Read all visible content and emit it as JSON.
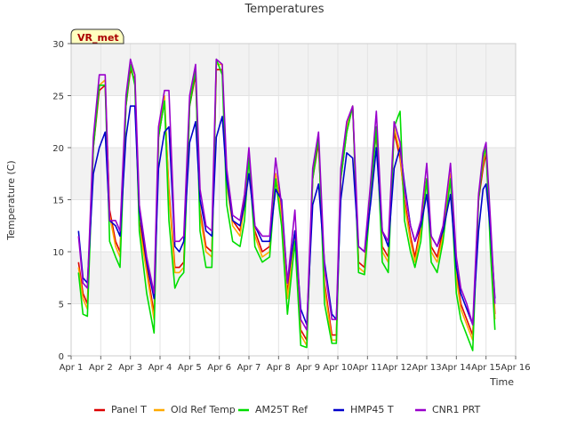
{
  "chart_data": {
    "type": "line",
    "title": "Temperatures",
    "xlabel": "Time",
    "ylabel": "Temperature (C)",
    "badge": "VR_met",
    "xlim": [
      1,
      16
    ],
    "ylim": [
      0,
      30
    ],
    "x_ticks": [
      {
        "v": 1,
        "label": "Apr 1"
      },
      {
        "v": 2,
        "label": "Apr 2"
      },
      {
        "v": 3,
        "label": "Apr 3"
      },
      {
        "v": 4,
        "label": "Apr 4"
      },
      {
        "v": 5,
        "label": "Apr 5"
      },
      {
        "v": 6,
        "label": "Apr 6"
      },
      {
        "v": 7,
        "label": "Apr 7"
      },
      {
        "v": 8,
        "label": "Apr 8"
      },
      {
        "v": 9,
        "label": "Apr 9"
      },
      {
        "v": 10,
        "label": "Apr 10"
      },
      {
        "v": 11,
        "label": "Apr 11"
      },
      {
        "v": 12,
        "label": "Apr 12"
      },
      {
        "v": 13,
        "label": "Apr 13"
      },
      {
        "v": 14,
        "label": "Apr 14"
      },
      {
        "v": 15,
        "label": "Apr 15"
      },
      {
        "v": 16,
        "label": "Apr 16"
      }
    ],
    "y_ticks": [
      0,
      5,
      10,
      15,
      20,
      25,
      30
    ],
    "grid": true,
    "legend_position": "bottom",
    "x": [
      1.25,
      1.4,
      1.55,
      1.75,
      1.95,
      2.15,
      2.3,
      2.5,
      2.65,
      2.85,
      3.0,
      3.15,
      3.3,
      3.55,
      3.8,
      3.95,
      4.15,
      4.3,
      4.5,
      4.65,
      4.8,
      5.0,
      5.2,
      5.35,
      5.55,
      5.75,
      5.9,
      6.1,
      6.25,
      6.45,
      6.7,
      6.85,
      7.0,
      7.2,
      7.45,
      7.7,
      7.9,
      8.1,
      8.3,
      8.55,
      8.75,
      8.95,
      9.15,
      9.35,
      9.55,
      9.8,
      9.95,
      10.1,
      10.3,
      10.5,
      10.7,
      10.9,
      11.1,
      11.3,
      11.5,
      11.7,
      11.9,
      12.1,
      12.25,
      12.45,
      12.6,
      12.8,
      13.0,
      13.15,
      13.35,
      13.55,
      13.8,
      14.0,
      14.15,
      14.35,
      14.55,
      14.75,
      14.9,
      15.0,
      15.15,
      15.3
    ],
    "series": [
      {
        "name": "Panel T",
        "color": "#dd0000",
        "values": [
          9.0,
          6.0,
          5.0,
          20.0,
          25.5,
          26.0,
          14.0,
          11.0,
          10.0,
          24.0,
          27.5,
          26.5,
          13.0,
          8.5,
          4.0,
          21.0,
          24.5,
          16.0,
          8.5,
          8.5,
          9.0,
          24.0,
          27.0,
          14.0,
          10.5,
          10.0,
          27.5,
          27.5,
          17.0,
          13.0,
          12.0,
          15.0,
          19.5,
          12.0,
          10.0,
          10.5,
          17.5,
          14.0,
          6.0,
          12.0,
          2.5,
          1.5,
          17.0,
          20.5,
          7.0,
          2.0,
          2.0,
          17.0,
          21.5,
          24.0,
          9.0,
          8.5,
          16.0,
          21.5,
          10.5,
          9.5,
          21.5,
          19.0,
          15.0,
          11.5,
          9.5,
          12.5,
          17.0,
          10.5,
          9.5,
          12.0,
          17.0,
          8.0,
          5.0,
          3.5,
          2.0,
          15.0,
          18.0,
          19.5,
          12.0,
          4.0
        ]
      },
      {
        "name": "Old Ref Temp",
        "color": "#ffaa00",
        "values": [
          8.5,
          5.5,
          4.5,
          20.5,
          26.0,
          26.5,
          13.5,
          10.5,
          9.5,
          24.5,
          28.0,
          27.0,
          12.5,
          8.0,
          3.5,
          21.5,
          25.0,
          15.5,
          8.0,
          8.0,
          8.5,
          24.5,
          27.5,
          13.5,
          10.0,
          9.5,
          28.0,
          28.0,
          16.5,
          12.5,
          11.5,
          14.5,
          19.5,
          11.5,
          9.5,
          10.0,
          17.5,
          13.5,
          5.5,
          11.5,
          2.0,
          1.0,
          17.5,
          21.0,
          6.5,
          1.5,
          1.5,
          17.5,
          22.0,
          24.0,
          8.5,
          8.0,
          15.5,
          22.0,
          10.0,
          9.0,
          22.0,
          19.5,
          14.5,
          11.0,
          9.0,
          12.0,
          17.0,
          10.0,
          9.0,
          11.5,
          17.5,
          7.5,
          4.5,
          3.0,
          1.5,
          15.5,
          18.5,
          20.0,
          11.5,
          3.5
        ]
      },
      {
        "name": "AM25T Ref",
        "color": "#00dd00",
        "values": [
          8.0,
          4.0,
          3.8,
          20.0,
          26.0,
          26.0,
          11.0,
          9.5,
          8.5,
          24.0,
          28.0,
          26.0,
          12.0,
          6.0,
          2.2,
          21.0,
          24.5,
          13.0,
          6.5,
          7.5,
          8.0,
          24.0,
          27.5,
          12.0,
          8.5,
          8.5,
          28.5,
          27.0,
          14.5,
          11.0,
          10.5,
          13.0,
          19.0,
          10.5,
          9.0,
          9.5,
          17.0,
          12.5,
          4.0,
          11.0,
          1.0,
          0.8,
          17.0,
          21.0,
          5.0,
          1.2,
          1.2,
          17.0,
          21.5,
          24.0,
          8.0,
          7.8,
          15.0,
          22.0,
          9.0,
          8.0,
          22.0,
          23.5,
          13.0,
          10.0,
          8.5,
          11.0,
          17.0,
          9.0,
          8.0,
          11.0,
          17.0,
          6.0,
          3.5,
          2.0,
          0.5,
          15.0,
          19.0,
          20.0,
          10.0,
          2.5
        ]
      },
      {
        "name": "HMP45 T",
        "color": "#0000cc",
        "values": [
          12.0,
          7.5,
          7.0,
          17.5,
          20.0,
          21.5,
          13.0,
          12.5,
          11.5,
          21.0,
          24.0,
          24.0,
          14.0,
          9.0,
          5.5,
          18.0,
          21.5,
          22.0,
          10.5,
          10.0,
          11.0,
          20.5,
          22.5,
          15.0,
          12.0,
          11.5,
          21.0,
          23.0,
          17.0,
          13.0,
          12.5,
          14.5,
          17.5,
          12.5,
          11.0,
          11.0,
          16.0,
          15.0,
          7.0,
          12.0,
          4.5,
          3.0,
          14.5,
          16.5,
          9.0,
          4.0,
          3.5,
          15.0,
          19.5,
          19.0,
          10.5,
          10.0,
          14.5,
          20.0,
          12.0,
          10.5,
          18.0,
          20.0,
          16.5,
          12.5,
          11.0,
          12.5,
          15.5,
          11.5,
          10.5,
          12.0,
          15.5,
          8.5,
          6.0,
          4.5,
          3.0,
          12.0,
          16.0,
          16.5,
          12.0,
          5.5
        ]
      },
      {
        "name": "CNR1 PRT",
        "color": "#9900cc",
        "values": [
          11.5,
          7.0,
          6.5,
          21.0,
          27.0,
          27.0,
          13.0,
          13.0,
          12.0,
          25.0,
          28.5,
          27.0,
          14.5,
          9.5,
          6.0,
          22.0,
          25.5,
          25.5,
          11.0,
          11.0,
          11.5,
          25.0,
          28.0,
          16.0,
          12.5,
          12.0,
          28.5,
          28.0,
          18.0,
          13.5,
          13.0,
          15.5,
          20.0,
          12.5,
          11.5,
          11.5,
          19.0,
          14.5,
          7.0,
          14.0,
          3.5,
          2.5,
          18.0,
          21.5,
          8.5,
          3.5,
          3.5,
          18.0,
          22.5,
          24.0,
          10.5,
          10.0,
          16.5,
          23.5,
          12.0,
          11.0,
          22.5,
          20.5,
          16.0,
          12.5,
          11.0,
          13.0,
          18.5,
          11.5,
          10.5,
          12.5,
          18.5,
          9.5,
          6.5,
          5.0,
          3.0,
          15.5,
          19.5,
          20.5,
          13.0,
          5.0
        ]
      }
    ]
  }
}
